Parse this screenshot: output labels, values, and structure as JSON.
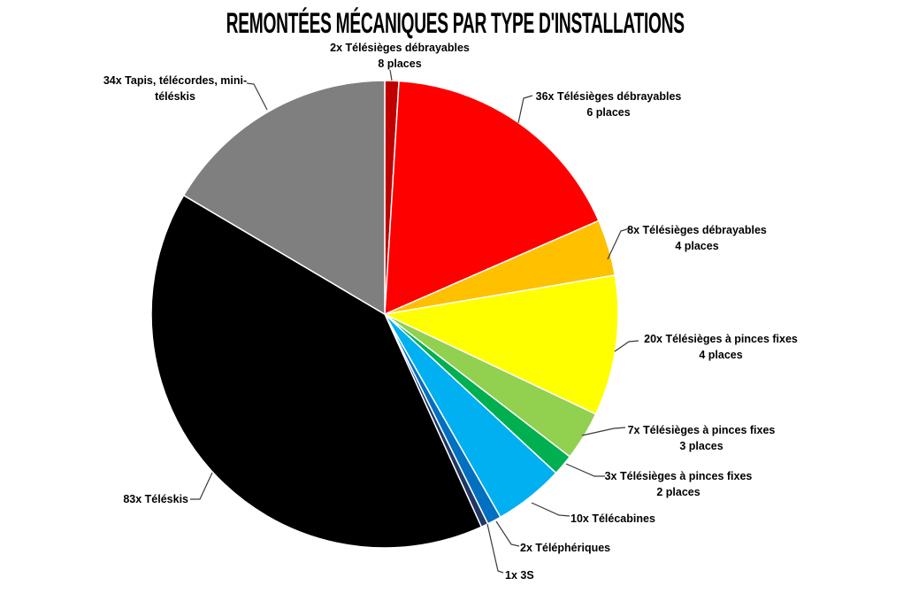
{
  "chart_data": {
    "type": "pie",
    "title": "REMONTÉES MÉCANIQUES PAR TYPE D'INSTALLATIONS",
    "total": 206,
    "start_angle_deg": 0,
    "direction": "clockwise",
    "legend": "none",
    "labels_outside_with_leader_lines": true,
    "background_color": "#FFFFFF",
    "separator_color": "#FFFFFF",
    "leader_line_color": "#3A3A3A",
    "slices": [
      {
        "label": "2x Télésièges débrayables 8 places",
        "label_lines": [
          "2x Télésièges débrayables",
          "8 places"
        ],
        "value": 2,
        "color": "#C00000"
      },
      {
        "label": "36x Télésièges débrayables 6 places",
        "label_lines": [
          "36x Télésièges débrayables",
          "6 places"
        ],
        "value": 36,
        "color": "#FF0000"
      },
      {
        "label": "8x Télésièges débrayables 4 places",
        "label_lines": [
          "8x Télésièges débrayables",
          "4 places"
        ],
        "value": 8,
        "color": "#FFC000"
      },
      {
        "label": "20x Télésièges à pinces fixes 4 places",
        "label_lines": [
          "20x Télésièges à pinces fixes",
          "4 places"
        ],
        "value": 20,
        "color": "#FFFF00"
      },
      {
        "label": "7x Télésièges à pinces fixes 3 places",
        "label_lines": [
          "7x Télésièges à pinces fixes",
          "3 places"
        ],
        "value": 7,
        "color": "#92D050"
      },
      {
        "label": "3x Télésièges à pinces fixes 2 places",
        "label_lines": [
          "3x Télésièges à pinces fixes",
          "2 places"
        ],
        "value": 3,
        "color": "#00B050"
      },
      {
        "label": "10x Télécabines",
        "label_lines": [
          "10x Télécabines"
        ],
        "value": 10,
        "color": "#00B0F0"
      },
      {
        "label": "2x Téléphériques",
        "label_lines": [
          "2x Téléphériques"
        ],
        "value": 2,
        "color": "#0070C0"
      },
      {
        "label": "1x 3S",
        "label_lines": [
          "1x 3S"
        ],
        "value": 1,
        "color": "#1F3864"
      },
      {
        "label": "83x Téléskis",
        "label_lines": [
          "83x Téléskis"
        ],
        "value": 83,
        "color": "#000000"
      },
      {
        "label": "34x Tapis, télécordes, mini-téléskis",
        "label_lines": [
          "34x Tapis, télécordes, mini-",
          "téléskis"
        ],
        "value": 34,
        "color": "#7F7F7F"
      }
    ]
  }
}
